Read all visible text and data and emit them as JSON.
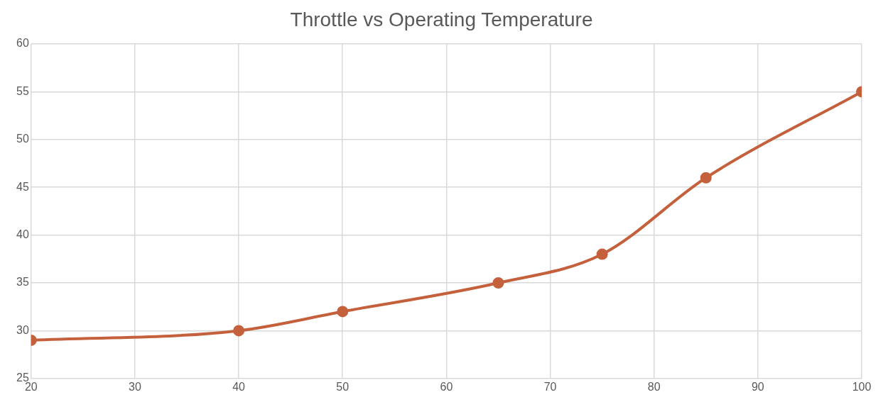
{
  "chart_data": {
    "type": "line",
    "title": "Throttle vs Operating Temperature",
    "x": [
      20,
      40,
      50,
      65,
      75,
      85,
      100
    ],
    "series": [
      {
        "color": "#c5603d",
        "values": [
          29,
          30,
          32,
          35,
          38,
          46,
          55
        ]
      }
    ],
    "xlim": [
      20,
      100
    ],
    "xticks": [
      20,
      30,
      40,
      50,
      60,
      70,
      80,
      90,
      100
    ],
    "ylim": [
      25,
      60
    ],
    "yticks": [
      25,
      30,
      35,
      40,
      45,
      50,
      55,
      60
    ],
    "grid": true,
    "legend": false,
    "marker": "circle",
    "line_style": "solid"
  }
}
